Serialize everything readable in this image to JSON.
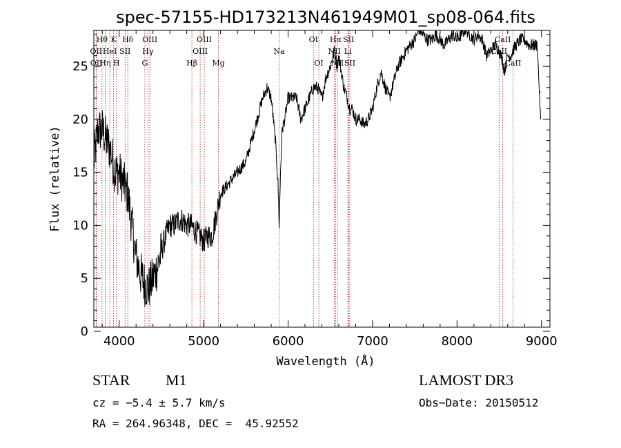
{
  "chart_data": {
    "type": "line",
    "title": "spec-57155-HD173213N461949M01_sp08-064.fits",
    "xlabel": "Wavelength (Å)",
    "ylabel": "Flux (relative)",
    "xlim": [
      3700,
      9100
    ],
    "ylim": [
      0,
      28
    ],
    "x_ticks": [
      "4000",
      "5000",
      "6000",
      "7000",
      "8000",
      "9000"
    ],
    "y_ticks": [
      "0",
      "5",
      "10",
      "15",
      "20",
      "25"
    ],
    "grid": false,
    "series": [
      {
        "x": [
          3700,
          3750,
          3800,
          3850,
          3900,
          3950,
          4000,
          4050,
          4100,
          4150,
          4200,
          4250,
          4300,
          4350,
          4400,
          4450,
          4500,
          4550,
          4600,
          4650,
          4700,
          4750,
          4800,
          4850,
          4900,
          4950,
          5000,
          5050,
          5100,
          5150,
          5200,
          5300,
          5400,
          5500,
          5600,
          5700,
          5750,
          5800,
          5850,
          5880,
          5895,
          5910,
          5930,
          5960,
          6000,
          6050,
          6100,
          6150,
          6200,
          6250,
          6300,
          6350,
          6400,
          6450,
          6500,
          6550,
          6580,
          6600,
          6630,
          6660,
          6700,
          6730,
          6760,
          6800,
          6850,
          6900,
          6950,
          7000,
          7050,
          7100,
          7150,
          7200,
          7300,
          7400,
          7500,
          7550,
          7600,
          7650,
          7700,
          7750,
          7800,
          7850,
          7900,
          7950,
          8000,
          8050,
          8100,
          8150,
          8200,
          8250,
          8300,
          8350,
          8400,
          8450,
          8500,
          8540,
          8560,
          8600,
          8640,
          8660,
          8700,
          8750,
          8800,
          8850,
          8900,
          8950,
          8990
        ],
        "y": [
          16,
          19,
          19,
          18,
          17,
          15,
          15,
          14,
          13,
          10,
          7,
          5.5,
          4.5,
          4,
          5,
          6,
          7.5,
          9,
          10,
          10,
          10.5,
          10.5,
          10,
          10,
          9.5,
          9,
          8.5,
          9,
          9,
          11,
          13,
          14,
          15,
          16,
          19,
          22,
          23,
          22,
          18,
          14,
          10,
          15,
          19,
          20,
          22,
          22,
          22,
          20,
          21,
          22,
          23,
          23,
          22,
          24,
          25,
          26.5,
          25,
          26,
          24.5,
          23,
          22,
          21,
          21,
          20,
          20,
          19.5,
          20,
          21,
          23,
          24.5,
          23,
          22,
          25,
          26.5,
          27.5,
          28.5,
          28,
          27.5,
          27.5,
          28,
          27.5,
          27,
          27.5,
          28,
          27.5,
          28,
          28.5,
          28,
          27.5,
          28,
          27.5,
          26,
          26.5,
          27,
          26.5,
          25.5,
          24.5,
          26,
          26,
          26.5,
          27,
          27.5,
          27.5,
          27,
          27,
          27,
          20
        ]
      }
    ],
    "line_markers": [
      {
        "name": "Hθ",
        "wl": 3797,
        "row": 0
      },
      {
        "name": "K",
        "wl": 3934,
        "row": 0
      },
      {
        "name": "Hδ",
        "wl": 4102,
        "row": 0
      },
      {
        "name": "OIII",
        "wl": 4363,
        "row": 0
      },
      {
        "name": "OIII",
        "wl": 5007,
        "row": 0
      },
      {
        "name": "OI",
        "wl": 6300,
        "row": 0
      },
      {
        "name": "Hα",
        "wl": 6563,
        "row": 0
      },
      {
        "name": "SII",
        "wl": 6717,
        "row": 0
      },
      {
        "name": "CaII",
        "wl": 8542,
        "row": 0
      },
      {
        "name": "OII",
        "wl": 3727,
        "row": 1
      },
      {
        "name": "HeI",
        "wl": 3889,
        "row": 1
      },
      {
        "name": "SII",
        "wl": 4070,
        "row": 1
      },
      {
        "name": "Hγ",
        "wl": 4340,
        "row": 1
      },
      {
        "name": "OIII",
        "wl": 4959,
        "row": 1
      },
      {
        "name": "Na",
        "wl": 5893,
        "row": 1
      },
      {
        "name": "NII",
        "wl": 6548,
        "row": 1
      },
      {
        "name": "Li",
        "wl": 6708,
        "row": 1
      },
      {
        "name": "CaII",
        "wl": 8498,
        "row": 1
      },
      {
        "name": "OII",
        "wl": 3729,
        "row": 2
      },
      {
        "name": "Hη",
        "wl": 3835,
        "row": 2
      },
      {
        "name": "H",
        "wl": 3968,
        "row": 2
      },
      {
        "name": "G",
        "wl": 4304,
        "row": 2
      },
      {
        "name": "Hβ",
        "wl": 4861,
        "row": 2
      },
      {
        "name": "Mg",
        "wl": 5175,
        "row": 2
      },
      {
        "name": "OI",
        "wl": 6364,
        "row": 2
      },
      {
        "name": "NII",
        "wl": 6583,
        "row": 2
      },
      {
        "name": "SII",
        "wl": 6731,
        "row": 2
      },
      {
        "name": "CaII",
        "wl": 8662,
        "row": 2
      }
    ]
  },
  "info": {
    "object_class": "STAR",
    "subclass": "M1",
    "survey": "LAMOST DR3",
    "cz": "cz = −5.4 ± 5.7 km/s",
    "obs_date": "Obs−Date: 20150512",
    "radec": "RA = 264.96348, DEC =  45.92552"
  }
}
